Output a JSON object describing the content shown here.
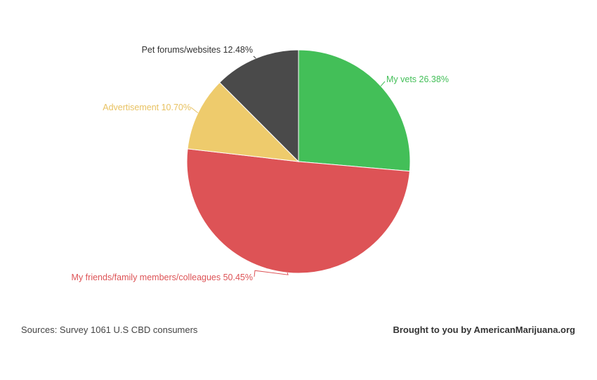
{
  "chart_data": {
    "type": "pie",
    "slices": [
      {
        "label": "My vets 26.38%",
        "value": 26.38,
        "color": "#43bf58"
      },
      {
        "label": "My friends/family members/colleagues 50.45%",
        "value": 50.45,
        "color": "#dd5356"
      },
      {
        "label": "Advertisement 10.70%",
        "value": 10.7,
        "color": "#eecb6c"
      },
      {
        "label": "Pet forums/websites 12.48%",
        "value": 12.48,
        "color": "#4a4a4a"
      }
    ],
    "label_colors": [
      "#43bf58",
      "#dd5356",
      "#e8c262",
      "#333333"
    ]
  },
  "footer": {
    "source": "Sources: Survey 1061 U.S CBD consumers",
    "credit": "Brought to you by AmericanMarijuana.org"
  }
}
